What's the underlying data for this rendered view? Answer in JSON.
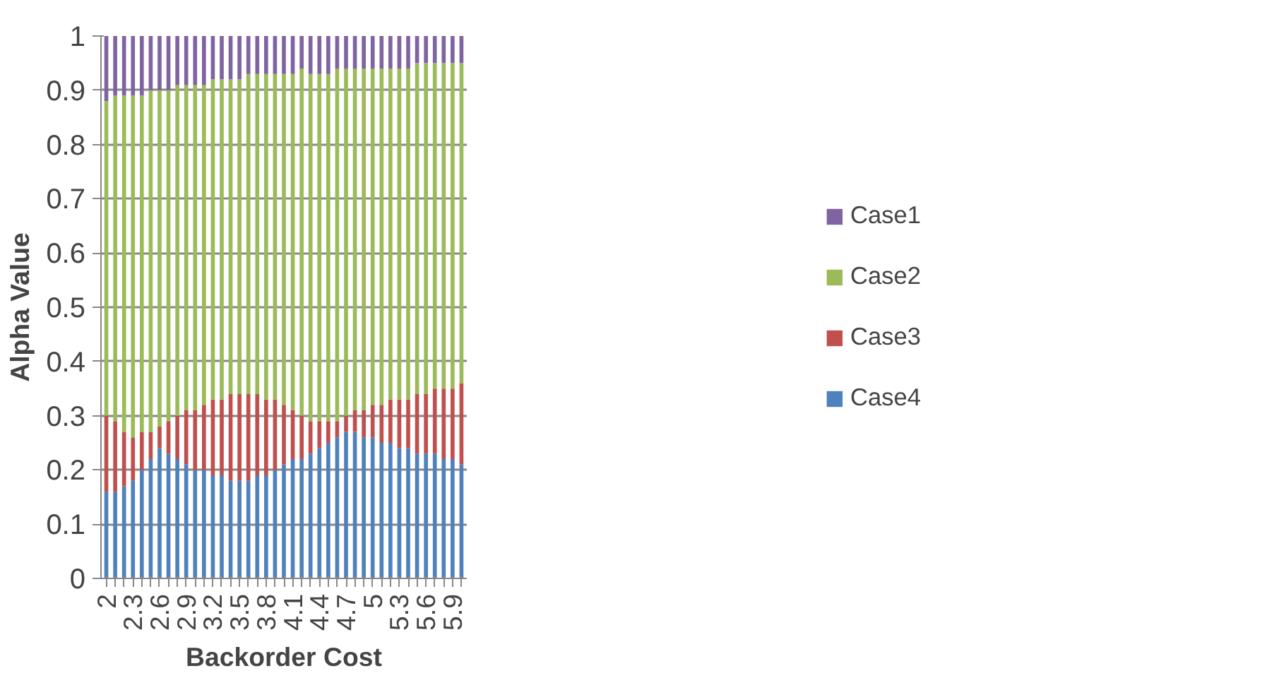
{
  "chart_data": {
    "type": "bar",
    "stacked": true,
    "xlabel": "Backorder Cost",
    "ylabel": "Alpha Value",
    "categories": [
      "2",
      null,
      null,
      "2.3",
      null,
      null,
      "2.6",
      null,
      null,
      "2.9",
      null,
      null,
      "3.2",
      null,
      null,
      "3.5",
      null,
      null,
      "3.8",
      null,
      null,
      "4.1",
      null,
      null,
      "4.4",
      null,
      null,
      "4.7",
      null,
      null,
      "5",
      null,
      null,
      "5.3",
      null,
      null,
      "5.6",
      null,
      null,
      "5.9",
      null
    ],
    "series": [
      {
        "name": "Case4",
        "color": "#4f81bd",
        "values": [
          0.16,
          0.16,
          0.17,
          0.18,
          0.2,
          0.22,
          0.24,
          0.23,
          0.22,
          0.21,
          0.2,
          0.2,
          0.19,
          0.19,
          0.18,
          0.18,
          0.18,
          0.19,
          0.19,
          0.2,
          0.21,
          0.22,
          0.22,
          0.23,
          0.24,
          0.25,
          0.26,
          0.27,
          0.27,
          0.26,
          0.26,
          0.25,
          0.25,
          0.24,
          0.24,
          0.23,
          0.23,
          0.23,
          0.22,
          0.22,
          0.21
        ]
      },
      {
        "name": "Case3",
        "color": "#c0504d",
        "values": [
          0.14,
          0.13,
          0.1,
          0.08,
          0.07,
          0.05,
          0.04,
          0.06,
          0.08,
          0.1,
          0.11,
          0.12,
          0.14,
          0.14,
          0.16,
          0.16,
          0.16,
          0.15,
          0.14,
          0.13,
          0.11,
          0.09,
          0.08,
          0.06,
          0.05,
          0.04,
          0.03,
          0.03,
          0.04,
          0.05,
          0.06,
          0.07,
          0.08,
          0.09,
          0.09,
          0.11,
          0.11,
          0.12,
          0.13,
          0.13,
          0.15
        ]
      },
      {
        "name": "Case2",
        "color": "#9bbb59",
        "values": [
          0.58,
          0.6,
          0.62,
          0.63,
          0.62,
          0.63,
          0.62,
          0.61,
          0.61,
          0.6,
          0.6,
          0.59,
          0.59,
          0.59,
          0.58,
          0.58,
          0.59,
          0.59,
          0.6,
          0.6,
          0.61,
          0.62,
          0.64,
          0.64,
          0.64,
          0.64,
          0.65,
          0.64,
          0.63,
          0.63,
          0.62,
          0.62,
          0.61,
          0.61,
          0.61,
          0.61,
          0.61,
          0.6,
          0.6,
          0.6,
          0.59
        ]
      },
      {
        "name": "Case1",
        "color": "#8064a2",
        "values": [
          0.12,
          0.11,
          0.11,
          0.11,
          0.11,
          0.1,
          0.1,
          0.1,
          0.09,
          0.09,
          0.09,
          0.09,
          0.08,
          0.08,
          0.08,
          0.08,
          0.07,
          0.07,
          0.07,
          0.07,
          0.07,
          0.07,
          0.06,
          0.07,
          0.07,
          0.07,
          0.06,
          0.06,
          0.06,
          0.06,
          0.06,
          0.06,
          0.06,
          0.06,
          0.06,
          0.05,
          0.05,
          0.05,
          0.05,
          0.05,
          0.05
        ]
      }
    ],
    "ylim": [
      0,
      1
    ],
    "yticks": [
      0,
      0.1,
      0.2,
      0.3,
      0.4,
      0.5,
      0.6,
      0.7,
      0.8,
      0.9,
      1
    ],
    "grid": "y",
    "legend": "right"
  }
}
